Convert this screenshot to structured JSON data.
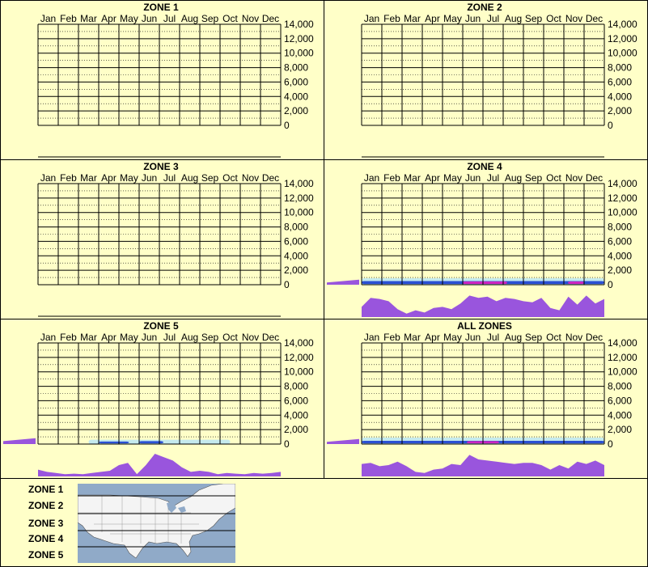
{
  "legend": {
    "zones": [
      "ZONE 1",
      "ZONE 2",
      "ZONE 3",
      "ZONE 4",
      "ZONE 5"
    ],
    "map_icon": "us-map-zones"
  },
  "colors": {
    "background": "#ffffc8",
    "profile_fill": "#9955dd",
    "heat_blue": "#1a3fd0",
    "heat_magenta": "#e020c0",
    "heat_light": "#bfe8f2"
  },
  "chart_data": [
    {
      "type": "heatmap",
      "title": "ZONE 1",
      "months": [
        "Jan",
        "Feb",
        "Mar",
        "Apr",
        "May",
        "Jun",
        "Jul",
        "Aug",
        "Sep",
        "Oct",
        "Nov",
        "Dec"
      ],
      "y_ticks": [
        "14,000",
        "12,000",
        "10,000",
        "8,000",
        "6,000",
        "4,000",
        "2,000",
        "0"
      ],
      "ylim": [
        0,
        14000
      ],
      "has_data": false,
      "monthly_profile": [],
      "bands": []
    },
    {
      "type": "heatmap",
      "title": "ZONE 2",
      "months": [
        "Jan",
        "Feb",
        "Mar",
        "Apr",
        "May",
        "Jun",
        "Jul",
        "Aug",
        "Sep",
        "Oct",
        "Nov",
        "Dec"
      ],
      "y_ticks": [
        "14,000",
        "12,000",
        "10,000",
        "8,000",
        "6,000",
        "4,000",
        "2,000",
        "0"
      ],
      "ylim": [
        0,
        14000
      ],
      "has_data": false,
      "monthly_profile": [],
      "bands": []
    },
    {
      "type": "heatmap",
      "title": "ZONE 3",
      "months": [
        "Jan",
        "Feb",
        "Mar",
        "Apr",
        "May",
        "Jun",
        "Jul",
        "Aug",
        "Sep",
        "Oct",
        "Nov",
        "Dec"
      ],
      "y_ticks": [
        "14,000",
        "12,000",
        "10,000",
        "8,000",
        "6,000",
        "4,000",
        "2,000",
        "0"
      ],
      "ylim": [
        0,
        14000
      ],
      "has_data": false,
      "monthly_profile": [],
      "bands": []
    },
    {
      "type": "heatmap",
      "title": "ZONE 4",
      "months": [
        "Jan",
        "Feb",
        "Mar",
        "Apr",
        "May",
        "Jun",
        "Jul",
        "Aug",
        "Sep",
        "Oct",
        "Nov",
        "Dec"
      ],
      "y_ticks": [
        "14,000",
        "12,000",
        "10,000",
        "8,000",
        "6,000",
        "4,000",
        "2,000",
        "0"
      ],
      "ylim": [
        0,
        14000
      ],
      "has_data": true,
      "elevation_profile": [
        0.15,
        0.35
      ],
      "monthly_profile": [
        0.45,
        0.85,
        0.8,
        0.7,
        0.35,
        0.15,
        0.3,
        0.2,
        0.4,
        0.45,
        0.35,
        0.6,
        0.95,
        0.85,
        0.9,
        0.7,
        0.85,
        0.8,
        0.7,
        0.65,
        0.85,
        0.4,
        0.3,
        0.9,
        0.55,
        0.95,
        0.6,
        0.8
      ],
      "bands": [
        {
          "month_start": 0.0,
          "month_end": 12.0,
          "alt_low": 0,
          "alt_high": 900,
          "level": "light"
        },
        {
          "month_start": 0.0,
          "month_end": 12.0,
          "alt_low": 100,
          "alt_high": 500,
          "level": "blue"
        },
        {
          "month_start": 5.0,
          "month_end": 7.2,
          "alt_low": 100,
          "alt_high": 450,
          "level": "magenta"
        },
        {
          "month_start": 10.2,
          "month_end": 11.0,
          "alt_low": 100,
          "alt_high": 450,
          "level": "magenta"
        }
      ]
    },
    {
      "type": "heatmap",
      "title": "ZONE 5",
      "months": [
        "Jan",
        "Feb",
        "Mar",
        "Apr",
        "May",
        "Jun",
        "Jul",
        "Aug",
        "Sep",
        "Oct",
        "Nov",
        "Dec"
      ],
      "y_ticks": [
        "14,000",
        "12,000",
        "10,000",
        "8,000",
        "6,000",
        "4,000",
        "2,000",
        "0"
      ],
      "ylim": [
        0,
        14000
      ],
      "has_data": true,
      "elevation_profile": [
        0.2,
        0.4
      ],
      "monthly_profile": [
        0.3,
        0.2,
        0.15,
        0.1,
        0.12,
        0.1,
        0.15,
        0.2,
        0.25,
        0.5,
        0.6,
        0.1,
        0.5,
        1.0,
        0.85,
        0.7,
        0.4,
        0.2,
        0.25,
        0.2,
        0.1,
        0.15,
        0.12,
        0.1,
        0.15,
        0.12,
        0.15,
        0.2
      ],
      "bands": [
        {
          "month_start": 2.5,
          "month_end": 9.5,
          "alt_low": 0,
          "alt_high": 600,
          "level": "light"
        },
        {
          "month_start": 3.0,
          "month_end": 4.5,
          "alt_low": 100,
          "alt_high": 350,
          "level": "blue"
        },
        {
          "month_start": 5.0,
          "month_end": 6.2,
          "alt_low": 100,
          "alt_high": 400,
          "level": "blue"
        }
      ]
    },
    {
      "type": "heatmap",
      "title": "ALL ZONES",
      "months": [
        "Jan",
        "Feb",
        "Mar",
        "Apr",
        "May",
        "Jun",
        "Jul",
        "Aug",
        "Sep",
        "Oct",
        "Nov",
        "Dec"
      ],
      "y_ticks": [
        "14,000",
        "12,000",
        "10,000",
        "8,000",
        "6,000",
        "4,000",
        "2,000",
        "0"
      ],
      "ylim": [
        0,
        14000
      ],
      "has_data": true,
      "elevation_profile": [
        0.15,
        0.35
      ],
      "monthly_profile": [
        0.55,
        0.6,
        0.45,
        0.5,
        0.65,
        0.45,
        0.2,
        0.15,
        0.3,
        0.35,
        0.55,
        0.5,
        0.95,
        0.75,
        0.7,
        0.65,
        0.6,
        0.55,
        0.6,
        0.6,
        0.5,
        0.3,
        0.5,
        0.35,
        0.65,
        0.55,
        0.7,
        0.5
      ],
      "bands": [
        {
          "month_start": 0.0,
          "month_end": 12.0,
          "alt_low": 0,
          "alt_high": 900,
          "level": "light"
        },
        {
          "month_start": 0.0,
          "month_end": 12.0,
          "alt_low": 100,
          "alt_high": 450,
          "level": "blue"
        },
        {
          "month_start": 5.2,
          "month_end": 6.8,
          "alt_low": 100,
          "alt_high": 400,
          "level": "magenta"
        }
      ]
    }
  ]
}
